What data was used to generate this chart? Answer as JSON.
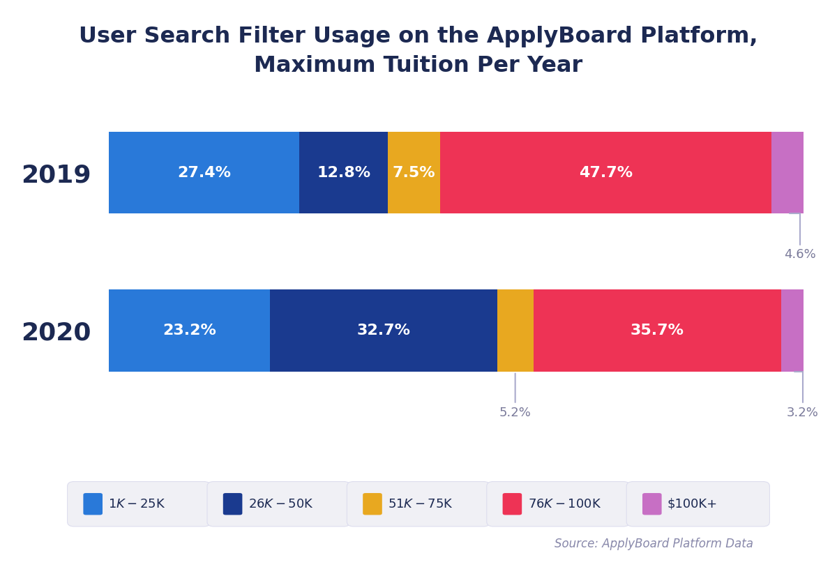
{
  "title": "User Search Filter Usage on the ApplyBoard Platform,\nMaximum Tuition Per Year",
  "years": [
    "2019",
    "2020"
  ],
  "categories": [
    "$1K-$25K",
    "$26K-$50K",
    "$51K-$75K",
    "$76K-$100K",
    "$100K+"
  ],
  "colors": [
    "#2979D9",
    "#1A3A8F",
    "#E8A820",
    "#EE3355",
    "#C76FC4"
  ],
  "data_2019": [
    27.4,
    12.8,
    7.5,
    47.7,
    4.6
  ],
  "data_2020": [
    23.2,
    32.7,
    5.2,
    35.7,
    3.2
  ],
  "source_text": "Source: ApplyBoard Platform Data",
  "background_color": "#FFFFFF",
  "title_color": "#1C2952",
  "label_color": "#FFFFFF",
  "small_label_color": "#7A7A9A",
  "bar_height": 0.52,
  "legend_box_color": "#F0F0F5"
}
